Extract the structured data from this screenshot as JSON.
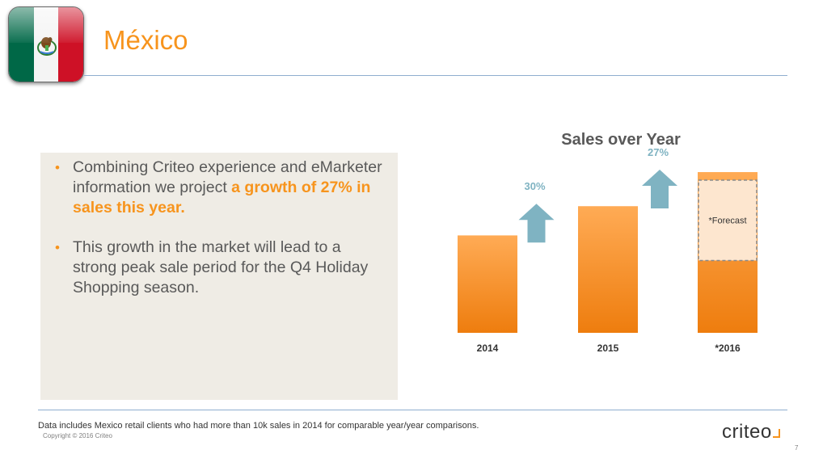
{
  "colors": {
    "accent": "#f7941d",
    "text": "#595959",
    "rule": "#8faecf",
    "arrow": "#7fb3c2",
    "panel": "#efece5",
    "bar_top": "#ffab55",
    "bar_bottom": "#ee7d0e",
    "forecast_fill": "#fde6cf"
  },
  "flag": {
    "colors": [
      "#006847",
      "#f4f4f4",
      "#ce1126"
    ],
    "emblem": "eagle-emblem-icon"
  },
  "header": {
    "title": "México"
  },
  "panel": {
    "bullets": [
      {
        "marker": "•",
        "text": "Combining Criteo experience and eMarketer information we project ",
        "highlight": "a growth of 27% in sales this year."
      },
      {
        "marker": "•",
        "text": "This growth in the market will lead to a strong peak sale period for the Q4 Holiday Shopping season.",
        "highlight": ""
      }
    ]
  },
  "chart_data": {
    "type": "bar",
    "title": "Sales over Year",
    "categories": [
      "2014",
      "2015",
      "*2016"
    ],
    "values": [
      100,
      130,
      165
    ],
    "ylim": [
      0,
      170
    ],
    "axis_values_printed": false,
    "growth_labels": [
      "30%",
      "27%"
    ],
    "forecast": {
      "category": "*2016",
      "label": "*Forecast",
      "portion_start": 0.55
    },
    "grid": false,
    "legend": "none"
  },
  "footer": {
    "note": "Data includes Mexico retail clients who had more than 10k sales in 2014 for comparable year/year comparisons.",
    "copyright": "Copyright © 2016 Criteo",
    "logo": "criteo",
    "page": "7"
  }
}
